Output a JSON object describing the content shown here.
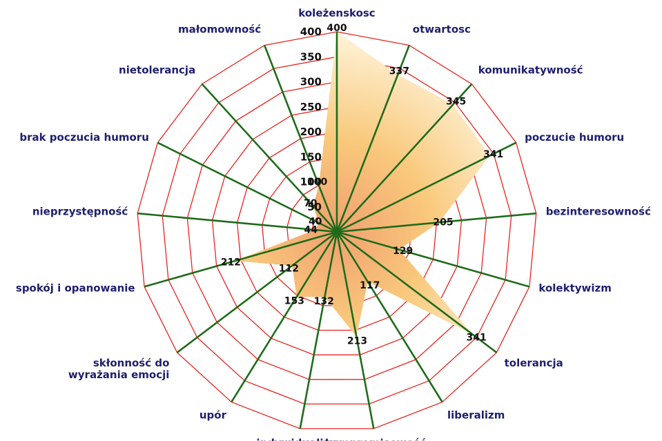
{
  "chart_data": {
    "type": "radar",
    "categories": [
      "koleżenskosc",
      "otwartosc",
      "komunikatywność",
      "poczucie humoru",
      "bezinteresowność",
      "kolektywizm",
      "tolerancja",
      "liberalizm",
      "kompromisowość",
      "indywidualizm",
      "upór",
      "skłonność do wyrażania emocji",
      "spokój i opanowanie",
      "nieprzystępność",
      "brak poczucia humoru",
      "nietolerancja",
      "małomowność"
    ],
    "category_labels": [
      [
        "koleżenskosc"
      ],
      [
        "otwartosc"
      ],
      [
        "komunikatywność"
      ],
      [
        "poczucie humoru"
      ],
      [
        "bezinteresowność"
      ],
      [
        "kolektywizm"
      ],
      [
        "tolerancja"
      ],
      [
        "liberalizm"
      ],
      [
        "kompromisowość"
      ],
      [
        "indywidualizm"
      ],
      [
        "upór"
      ],
      [
        "skłonność do",
        "wyrażania emocji"
      ],
      [
        "spokój i opanowanie"
      ],
      [
        "nieprzystępność"
      ],
      [
        "brak poczucia humoru"
      ],
      [
        "nietolerancja"
      ],
      [
        "małomowność"
      ]
    ],
    "series": [
      {
        "values": [
          400,
          337,
          345,
          341,
          205,
          129,
          341,
          117,
          213,
          132,
          153,
          112,
          212,
          44,
          40,
          70,
          100
        ],
        "data_labels": [
          "400",
          "337",
          "345",
          "341",
          "205",
          "129",
          "341",
          "117",
          "213",
          "132",
          "153",
          "112",
          "212",
          "44",
          "40",
          "70",
          "100"
        ]
      }
    ],
    "rlim": [
      0,
      400
    ],
    "r_ticks": [
      50,
      100,
      150,
      200,
      250,
      300,
      350,
      400
    ],
    "r_tick_labels": [
      "50",
      "100",
      "150",
      "200",
      "250",
      "300",
      "350",
      "400"
    ],
    "grid": true
  },
  "colors": {
    "grid": "#e8231e",
    "spoke": "#1e6b1a",
    "fill_outer": "#fff6e0",
    "fill_mid": "#f9c97c",
    "fill_inner": "#f0a070",
    "label": "#1f1f6e"
  }
}
